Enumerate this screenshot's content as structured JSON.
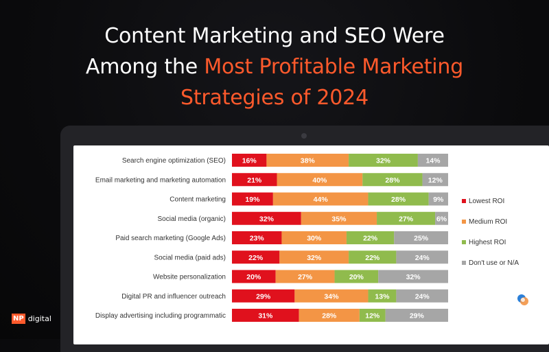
{
  "headline": {
    "line1": "Content Marketing and SEO Were",
    "line2_plain": "Among the ",
    "line2_accent": "Most Profitable Marketing",
    "line3_accent": "Strategies of 2024"
  },
  "logo": {
    "mark": "NP",
    "text": "digital"
  },
  "colors": {
    "accent": "#ff5a2c"
  },
  "chart_data": {
    "type": "bar",
    "orientation": "horizontal",
    "stacked": true,
    "categories": [
      "Search engine optimization (SEO)",
      "Email marketing and marketing automation",
      "Content marketing",
      "Social media (organic)",
      "Paid search marketing (Google Ads)",
      "Social media (paid ads)",
      "Website personalization",
      "Digital PR and influencer outreach",
      "Display advertising including programmatic"
    ],
    "series": [
      {
        "name": "Lowest ROI",
        "color": "#e0111d",
        "values": [
          16,
          21,
          19,
          32,
          23,
          22,
          20,
          29,
          31
        ]
      },
      {
        "name": "Medium ROI",
        "color": "#f39545",
        "values": [
          38,
          40,
          44,
          35,
          30,
          32,
          27,
          34,
          28
        ]
      },
      {
        "name": "Highest ROI",
        "color": "#90bb4d",
        "values": [
          32,
          28,
          28,
          27,
          22,
          22,
          20,
          13,
          12
        ]
      },
      {
        "name": "Don't use or N/A",
        "color": "#a6a6a6",
        "values": [
          14,
          12,
          9,
          6,
          25,
          24,
          32,
          24,
          29
        ]
      }
    ],
    "value_suffix": "%",
    "legend_position": "right",
    "grid": false
  }
}
